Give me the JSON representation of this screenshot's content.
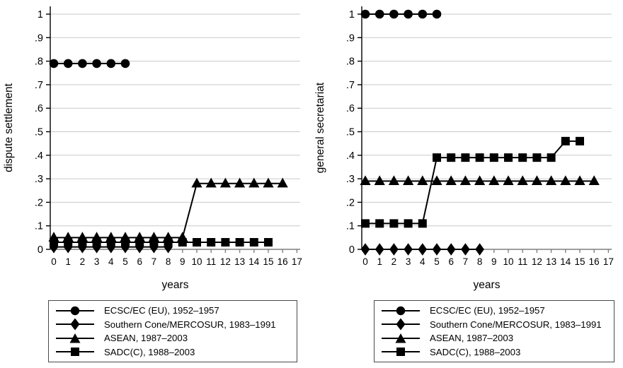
{
  "figure": {
    "background": "#ffffff",
    "colors": {
      "series": "#000000",
      "grid": "#c9c9c9",
      "y_axis": "#000000",
      "x_axis": "#7f7f7f",
      "legend_border": "#4a4a4a"
    }
  },
  "chart_data": [
    {
      "type": "line",
      "title": "",
      "ylabel": "dispute settlement",
      "xlabel": "years",
      "xlim": [
        0,
        17
      ],
      "ylim": [
        0,
        1
      ],
      "grid": "horizontal",
      "legend_position": "below",
      "x_tick_labels": [
        "0",
        "1",
        "2",
        "3",
        "4",
        "5",
        "6",
        "7",
        "8",
        "9",
        "10",
        "11",
        "12",
        "13",
        "14",
        "15",
        "16",
        "17"
      ],
      "y_tick_labels": [
        "0",
        ".1",
        ".2",
        ".3",
        ".4",
        ".5",
        ".6",
        ".7",
        ".8",
        ".9",
        "1"
      ],
      "series": [
        {
          "name": "ECSC/EC (EU), 1952–1957",
          "marker": "circle",
          "x": [
            0,
            1,
            2,
            3,
            4,
            5
          ],
          "y": [
            0.79,
            0.79,
            0.79,
            0.79,
            0.79,
            0.79
          ]
        },
        {
          "name": "Southern Cone/MERCOSUR, 1983–1991",
          "marker": "diamond",
          "x": [
            0,
            1,
            2,
            3,
            4,
            5,
            6,
            7,
            8
          ],
          "y": [
            0.01,
            0.01,
            0.01,
            0.01,
            0.01,
            0.01,
            0.01,
            0.01,
            0.01
          ]
        },
        {
          "name": "ASEAN, 1987–2003",
          "marker": "triangle",
          "x": [
            0,
            1,
            2,
            3,
            4,
            5,
            6,
            7,
            8,
            9,
            10,
            11,
            12,
            13,
            14,
            15,
            16
          ],
          "y": [
            0.05,
            0.05,
            0.05,
            0.05,
            0.05,
            0.05,
            0.05,
            0.05,
            0.05,
            0.05,
            0.28,
            0.28,
            0.28,
            0.28,
            0.28,
            0.28,
            0.28
          ]
        },
        {
          "name": "SADC(C), 1988–2003",
          "marker": "square",
          "x": [
            0,
            1,
            2,
            3,
            4,
            5,
            6,
            7,
            8,
            9,
            10,
            11,
            12,
            13,
            14,
            15
          ],
          "y": [
            0.03,
            0.03,
            0.03,
            0.03,
            0.03,
            0.03,
            0.03,
            0.03,
            0.03,
            0.03,
            0.03,
            0.03,
            0.03,
            0.03,
            0.03,
            0.03
          ]
        }
      ],
      "legend": [
        {
          "marker": "circle",
          "label": "ECSC/EC (EU), 1952–1957"
        },
        {
          "marker": "diamond",
          "label": "Southern Cone/MERCOSUR, 1983–1991"
        },
        {
          "marker": "triangle",
          "label": "ASEAN, 1987–2003"
        },
        {
          "marker": "square",
          "label": "SADC(C), 1988–2003"
        }
      ]
    },
    {
      "type": "line",
      "title": "",
      "ylabel": "general secretariat",
      "xlabel": "years",
      "xlim": [
        0,
        17
      ],
      "ylim": [
        0,
        1
      ],
      "grid": "horizontal",
      "legend_position": "below",
      "x_tick_labels": [
        "0",
        "1",
        "2",
        "3",
        "4",
        "5",
        "6",
        "7",
        "8",
        "9",
        "10",
        "11",
        "12",
        "13",
        "14",
        "15",
        "16",
        "17"
      ],
      "y_tick_labels": [
        "0",
        ".1",
        ".2",
        ".3",
        ".4",
        ".5",
        ".6",
        ".7",
        ".8",
        ".9",
        "1"
      ],
      "series": [
        {
          "name": "ECSC/EC (EU), 1952–1957",
          "marker": "circle",
          "x": [
            0,
            1,
            2,
            3,
            4,
            5
          ],
          "y": [
            1,
            1,
            1,
            1,
            1,
            1
          ]
        },
        {
          "name": "Southern Cone/MERCOSUR, 1983–1991",
          "marker": "diamond",
          "x": [
            0,
            1,
            2,
            3,
            4,
            5,
            6,
            7,
            8
          ],
          "y": [
            0,
            0,
            0,
            0,
            0,
            0,
            0,
            0,
            0
          ]
        },
        {
          "name": "ASEAN, 1987–2003",
          "marker": "triangle",
          "x": [
            0,
            1,
            2,
            3,
            4,
            5,
            6,
            7,
            8,
            9,
            10,
            11,
            12,
            13,
            14,
            15,
            16
          ],
          "y": [
            0.29,
            0.29,
            0.29,
            0.29,
            0.29,
            0.29,
            0.29,
            0.29,
            0.29,
            0.29,
            0.29,
            0.29,
            0.29,
            0.29,
            0.29,
            0.29,
            0.29
          ]
        },
        {
          "name": "SADC(C), 1988–2003",
          "marker": "square",
          "x": [
            0,
            1,
            2,
            3,
            4,
            5,
            6,
            7,
            8,
            9,
            10,
            11,
            12,
            13,
            14,
            15
          ],
          "y": [
            0.11,
            0.11,
            0.11,
            0.11,
            0.11,
            0.39,
            0.39,
            0.39,
            0.39,
            0.39,
            0.39,
            0.39,
            0.39,
            0.39,
            0.46,
            0.46
          ]
        }
      ],
      "legend": [
        {
          "marker": "circle",
          "label": "ECSC/EC (EU), 1952–1957"
        },
        {
          "marker": "diamond",
          "label": "Southern Cone/MERCOSUR, 1983–1991"
        },
        {
          "marker": "triangle",
          "label": "ASEAN, 1987–2003"
        },
        {
          "marker": "square",
          "label": "SADC(C), 1988–2003"
        }
      ]
    }
  ]
}
